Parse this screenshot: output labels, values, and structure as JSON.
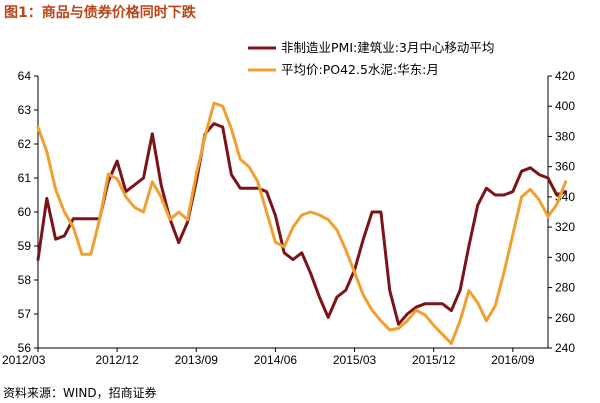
{
  "figure_title": "图1：商品与债券价格同时下跌",
  "source_note": "资料来源：WIND，招商证券",
  "colors": {
    "series1": "#7b1418",
    "series2": "#f0a030",
    "title": "#b8461b",
    "axis": "#000000"
  },
  "chart_data": {
    "type": "line",
    "title": "图1：商品与债券价格同时下跌",
    "x_tick_labels": [
      "2012/03",
      "2012/12",
      "2013/09",
      "2014/06",
      "2015/03",
      "2015/12",
      "2016/09"
    ],
    "x_range": [
      "2012/03",
      "2017/01"
    ],
    "y_left": {
      "min": 56,
      "max": 64,
      "ticks": [
        56,
        57,
        58,
        59,
        60,
        61,
        62,
        63,
        64
      ]
    },
    "y_right": {
      "min": 240,
      "max": 420,
      "ticks": [
        240,
        260,
        280,
        300,
        320,
        340,
        360,
        380,
        400,
        420
      ]
    },
    "grid": false,
    "legend_position": "top-right",
    "series": [
      {
        "name": "非制造业PMI:建筑业:3月中心移动平均",
        "axis": "left",
        "color": "#7b1418",
        "values": [
          58.6,
          60.4,
          59.2,
          59.3,
          59.8,
          59.8,
          59.8,
          59.8,
          60.9,
          61.5,
          60.6,
          60.8,
          61.0,
          62.3,
          60.8,
          59.8,
          59.1,
          59.7,
          60.9,
          62.3,
          62.6,
          62.5,
          61.1,
          60.7,
          60.7,
          60.7,
          60.6,
          59.9,
          58.8,
          58.6,
          58.8,
          58.2,
          57.5,
          56.9,
          57.5,
          57.7,
          58.3,
          59.2,
          60.0,
          60.0,
          57.7,
          56.7,
          57.0,
          57.2,
          57.3,
          57.3,
          57.3,
          57.1,
          57.7,
          59.0,
          60.2,
          60.7,
          60.5,
          60.5,
          60.6,
          61.2,
          61.3,
          61.1,
          61.0,
          60.5,
          60.6
        ]
      },
      {
        "name": "平均价:PO42.5水泥:华东:月",
        "axis": "right",
        "color": "#f0a030",
        "values": [
          386,
          370,
          345,
          330,
          320,
          302,
          302,
          325,
          355,
          352,
          340,
          333,
          330,
          350,
          340,
          325,
          330,
          325,
          355,
          380,
          402,
          400,
          385,
          365,
          360,
          350,
          330,
          310,
          307,
          320,
          328,
          330,
          328,
          325,
          318,
          305,
          290,
          275,
          265,
          258,
          252,
          253,
          258,
          265,
          262,
          255,
          249,
          243,
          258,
          278,
          270,
          258,
          268,
          290,
          315,
          340,
          345,
          338,
          327,
          335,
          350
        ]
      }
    ]
  }
}
